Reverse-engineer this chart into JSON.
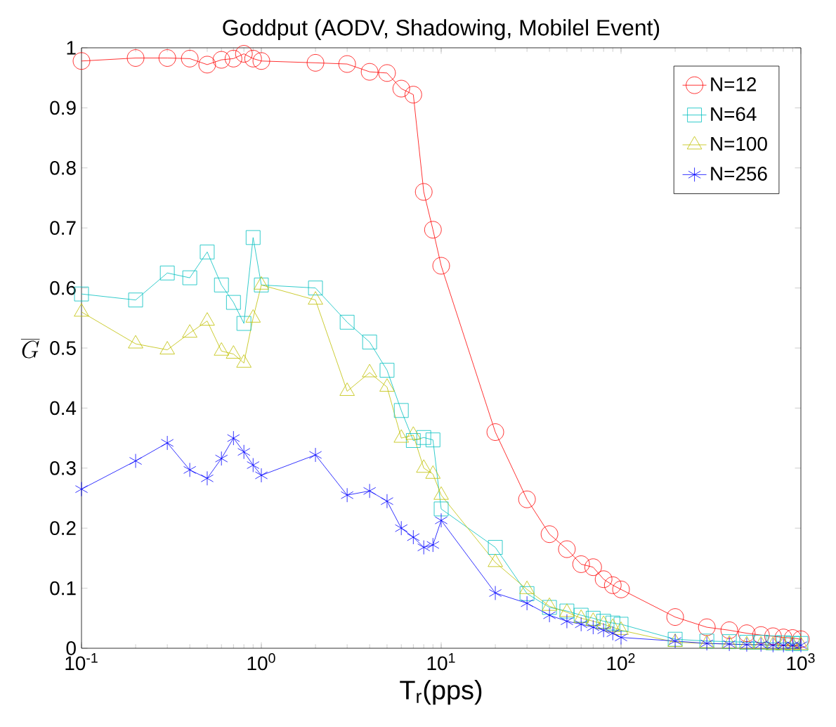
{
  "chart_data": {
    "type": "line",
    "title": "Goddput (AODV, Shadowing, Mobilel Event)",
    "xlabel": "T$_{r}$(pps)",
    "ylabel": "\\overline{G}",
    "log": "x",
    "legend": "top right",
    "grid": false,
    "x": [
      0.1,
      0.2,
      0.3,
      0.4,
      0.5,
      0.6,
      0.7,
      0.8,
      0.9,
      1,
      2,
      3,
      4,
      5,
      6,
      7,
      8,
      9,
      10,
      20,
      30,
      40,
      50,
      60,
      70,
      80,
      90,
      100,
      200,
      300,
      400,
      500,
      600,
      700,
      800,
      900,
      1000
    ],
    "xlim": [
      0.1,
      1000
    ],
    "ylim": [
      0,
      1
    ],
    "xticks": [
      {
        "value": 0.1,
        "label": "10$^{-1}$"
      },
      {
        "value": 1,
        "label": "10$^{0}$"
      },
      {
        "value": 10,
        "label": "10$^{1}$"
      },
      {
        "value": 100,
        "label": "10$^{2}$"
      },
      {
        "value": 1000,
        "label": "10$^{3}$"
      }
    ],
    "yticks": [
      0,
      0.1,
      0.2,
      0.3,
      0.4,
      0.5,
      0.6,
      0.7,
      0.8,
      0.9,
      1
    ],
    "series": [
      {
        "name": "N=12",
        "color": "#ff0000",
        "marker": "circle",
        "values": [
          0.978,
          0.983,
          0.983,
          0.982,
          0.972,
          0.98,
          0.982,
          0.99,
          0.982,
          0.978,
          0.975,
          0.973,
          0.96,
          0.958,
          0.932,
          0.922,
          0.76,
          0.697,
          0.637,
          0.36,
          0.248,
          0.19,
          0.165,
          0.14,
          0.135,
          0.115,
          0.105,
          0.098,
          0.052,
          0.035,
          0.03,
          0.025,
          0.022,
          0.02,
          0.018,
          0.017,
          0.015
        ]
      },
      {
        "name": "N=64",
        "color": "#00bfbf",
        "marker": "square",
        "values": [
          0.59,
          0.58,
          0.625,
          0.617,
          0.66,
          0.605,
          0.576,
          0.541,
          0.684,
          0.605,
          0.6,
          0.543,
          0.51,
          0.463,
          0.396,
          0.346,
          0.351,
          0.347,
          0.232,
          0.168,
          0.091,
          0.068,
          0.062,
          0.055,
          0.05,
          0.045,
          0.042,
          0.04,
          0.015,
          0.012,
          0.011,
          0.01,
          0.01,
          0.009,
          0.009,
          0.008,
          0.008
        ]
      },
      {
        "name": "N=100",
        "color": "#bfbf00",
        "marker": "triangle",
        "values": [
          0.56,
          0.507,
          0.497,
          0.525,
          0.545,
          0.495,
          0.49,
          0.475,
          0.55,
          0.605,
          0.58,
          0.428,
          0.459,
          0.435,
          0.35,
          0.355,
          0.3,
          0.29,
          0.255,
          0.143,
          0.098,
          0.07,
          0.06,
          0.05,
          0.045,
          0.04,
          0.035,
          0.03,
          0.01,
          0.008,
          0.007,
          0.006,
          0.006,
          0.005,
          0.005,
          0.005,
          0.005
        ]
      },
      {
        "name": "N=256",
        "color": "#0000ff",
        "marker": "cross",
        "values": [
          0.265,
          0.312,
          0.342,
          0.297,
          0.283,
          0.316,
          0.35,
          0.327,
          0.305,
          0.288,
          0.322,
          0.255,
          0.262,
          0.245,
          0.2,
          0.185,
          0.168,
          0.172,
          0.213,
          0.092,
          0.075,
          0.055,
          0.045,
          0.04,
          0.035,
          0.03,
          0.025,
          0.018,
          0.012,
          0.008,
          0.007,
          0.006,
          0.006,
          0.005,
          0.005,
          0.005,
          0.005
        ]
      }
    ]
  }
}
